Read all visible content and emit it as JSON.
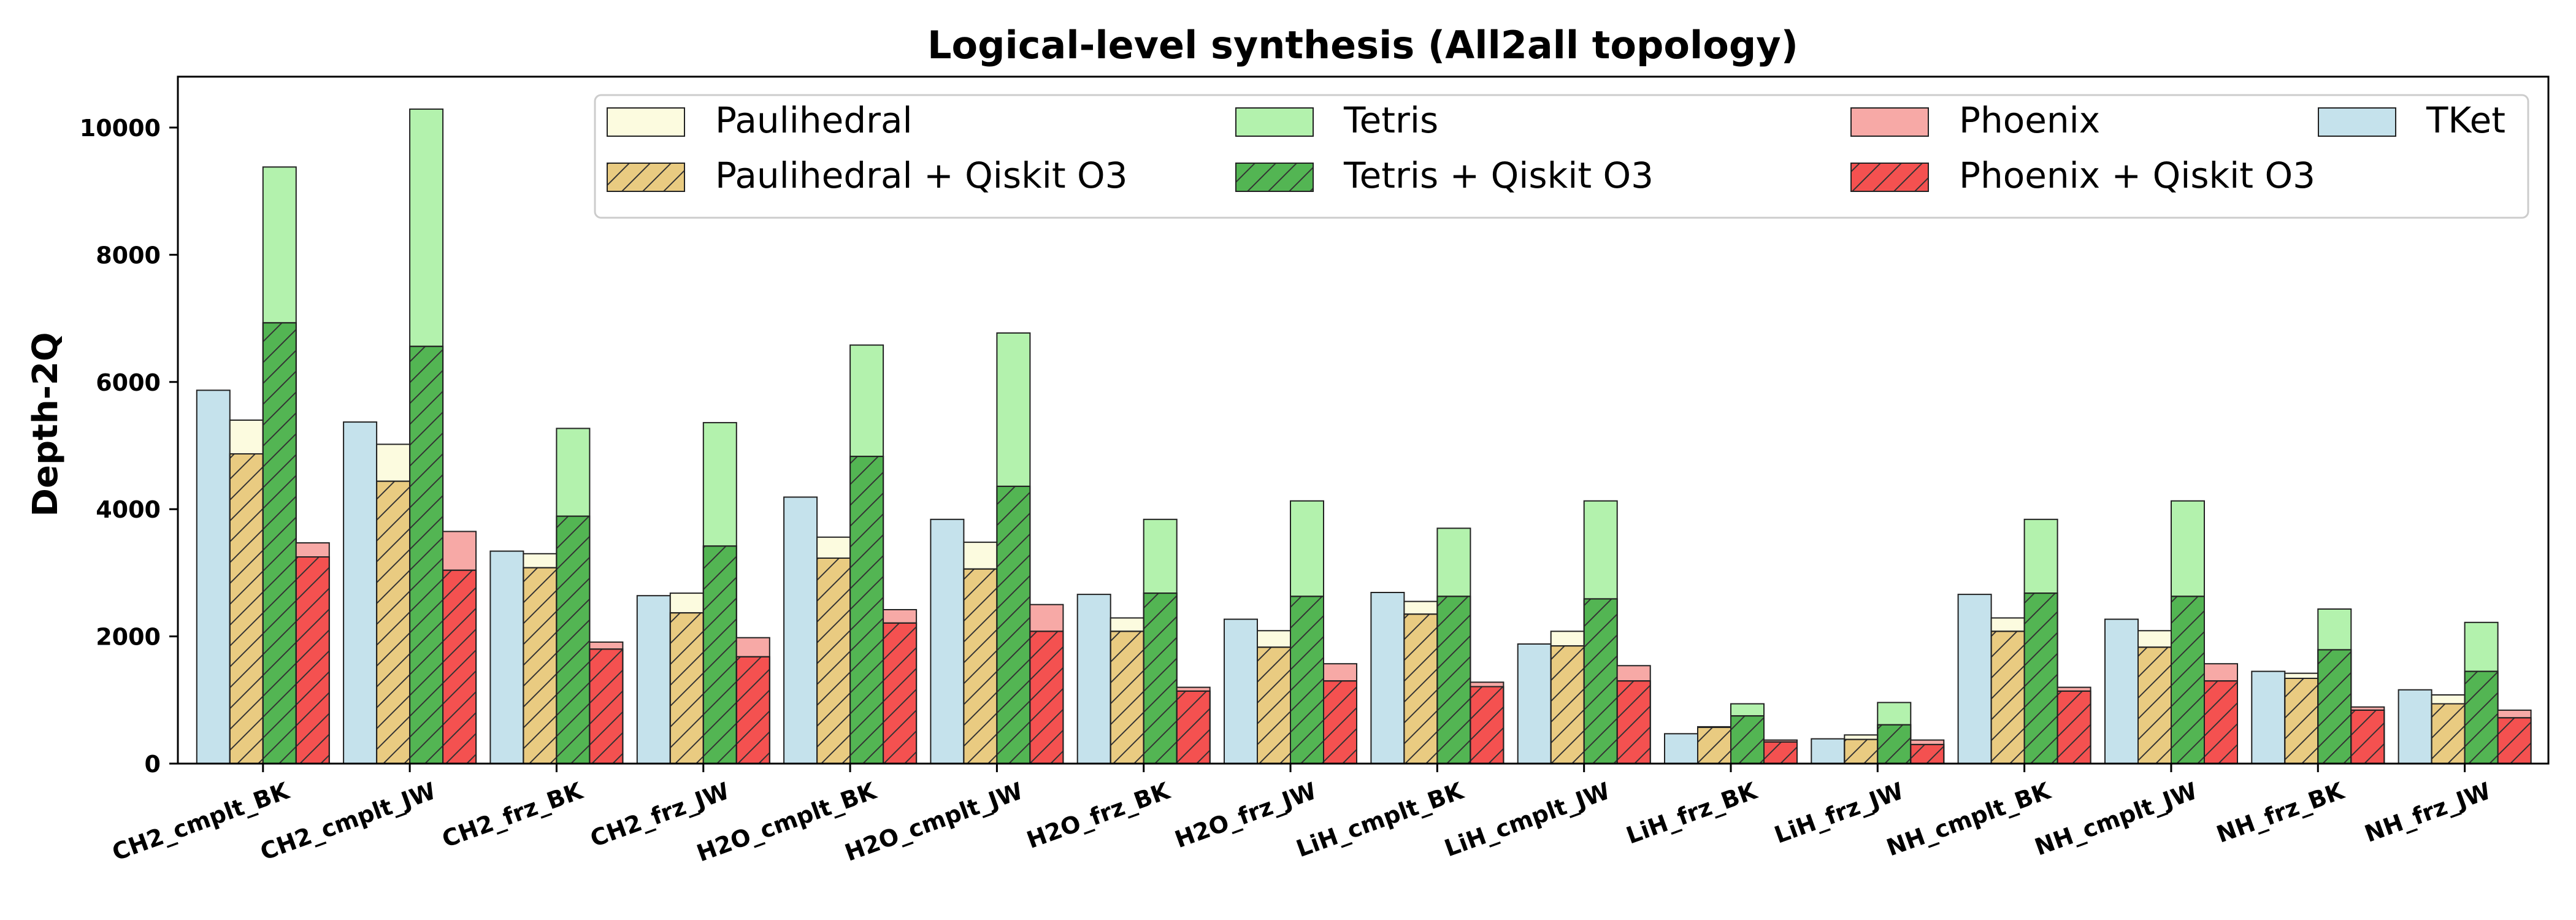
{
  "chart_data": {
    "type": "bar",
    "title": "Logical-level synthesis (All2all topology)",
    "ylabel": "Depth-2Q",
    "xlabel": "",
    "ylim": [
      0,
      10800
    ],
    "yticks": [
      0,
      2000,
      4000,
      6000,
      8000,
      10000
    ],
    "ytick_labels": [
      "0",
      "2000",
      "4000",
      "6000",
      "8000",
      "10000"
    ],
    "grid": false,
    "legend_position": "top-right",
    "categories": [
      "CH2_cmplt_BK",
      "CH2_cmplt_JW",
      "CH2_frz_BK",
      "CH2_frz_JW",
      "H2O_cmplt_BK",
      "H2O_cmplt_JW",
      "H2O_frz_BK",
      "H2O_frz_JW",
      "LiH_cmplt_BK",
      "LiH_cmplt_JW",
      "LiH_frz_BK",
      "LiH_frz_JW",
      "NH_cmplt_BK",
      "NH_cmplt_JW",
      "NH_frz_BK",
      "NH_frz_JW"
    ],
    "series": [
      {
        "name": "TKet",
        "color": "#c5e2ec",
        "hatch": false,
        "group": 0,
        "values": [
          5870,
          5370,
          3340,
          2640,
          4190,
          3840,
          2660,
          2270,
          2690,
          1880,
          470,
          390,
          2660,
          2270,
          1450,
          1160
        ]
      },
      {
        "name": "Paulihedral",
        "color": "#fcfbdf",
        "hatch": false,
        "group": 1,
        "values": [
          5400,
          5020,
          3300,
          2680,
          3560,
          3480,
          2290,
          2090,
          2550,
          2080,
          580,
          450,
          2290,
          2090,
          1420,
          1080
        ]
      },
      {
        "name": "Paulihedral + Qiskit O3",
        "color": "#e9cb81",
        "hatch": true,
        "group": 1,
        "values": [
          4870,
          4440,
          3080,
          2370,
          3230,
          3060,
          2080,
          1830,
          2350,
          1850,
          570,
          380,
          2080,
          1830,
          1340,
          940
        ]
      },
      {
        "name": "Tetris",
        "color": "#b3f2ad",
        "hatch": false,
        "group": 2,
        "values": [
          9380,
          10290,
          5270,
          5360,
          6580,
          6770,
          3840,
          4130,
          3700,
          4130,
          940,
          960,
          3840,
          4130,
          2430,
          2220
        ]
      },
      {
        "name": "Tetris + Qiskit O3",
        "color": "#53b553",
        "hatch": true,
        "group": 2,
        "values": [
          6930,
          6560,
          3890,
          3420,
          4830,
          4360,
          2680,
          2630,
          2630,
          2590,
          750,
          610,
          2680,
          2630,
          1790,
          1450
        ]
      },
      {
        "name": "Phoenix",
        "color": "#f7a9a6",
        "hatch": false,
        "group": 3,
        "values": [
          3470,
          3650,
          1910,
          1980,
          2420,
          2500,
          1200,
          1570,
          1280,
          1540,
          370,
          370,
          1200,
          1570,
          890,
          840
        ]
      },
      {
        "name": "Phoenix + Qiskit O3",
        "color": "#f45150",
        "hatch": true,
        "group": 3,
        "values": [
          3250,
          3040,
          1800,
          1680,
          2210,
          2080,
          1140,
          1300,
          1210,
          1300,
          340,
          300,
          1140,
          1300,
          840,
          720
        ]
      }
    ],
    "legend_entries": [
      {
        "label": "Paulihedral",
        "color": "#fcfbdf",
        "hatch": false
      },
      {
        "label": "Paulihedral + Qiskit O3",
        "color": "#e9cb81",
        "hatch": true
      },
      {
        "label": "Tetris",
        "color": "#b3f2ad",
        "hatch": false
      },
      {
        "label": "Tetris + Qiskit O3",
        "color": "#53b553",
        "hatch": true
      },
      {
        "label": "Phoenix",
        "color": "#f7a9a6",
        "hatch": false
      },
      {
        "label": "Phoenix + Qiskit O3",
        "color": "#f45150",
        "hatch": true
      },
      {
        "label": "TKet",
        "color": "#c5e2ec",
        "hatch": false
      }
    ]
  }
}
